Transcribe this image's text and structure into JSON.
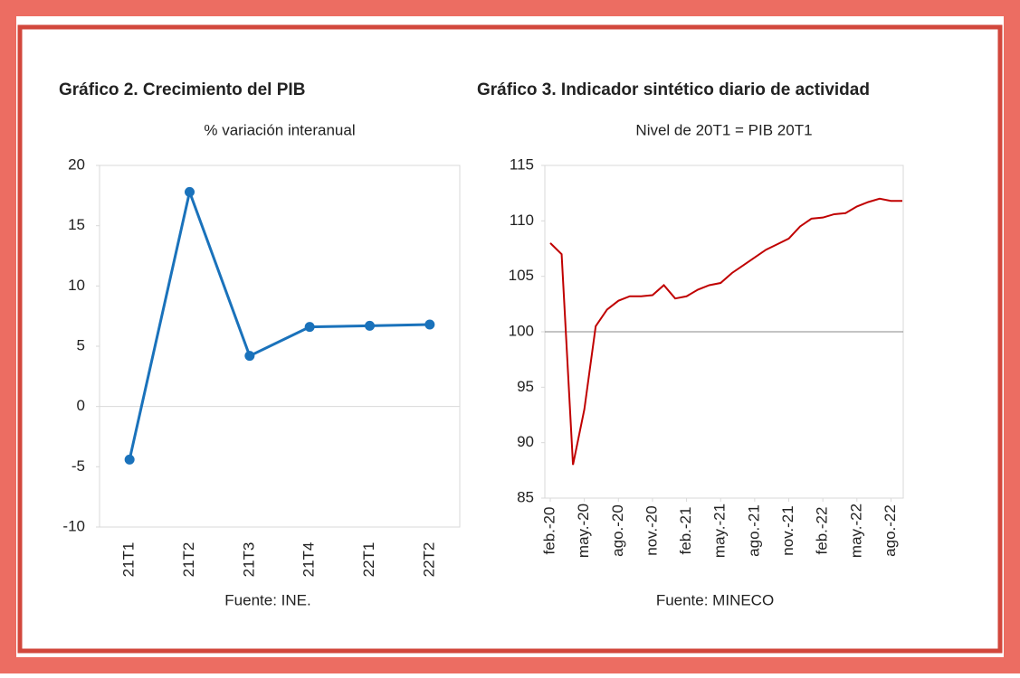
{
  "chart_data": [
    {
      "type": "line",
      "title": "Gráfico 2. Crecimiento del PIB",
      "subtitle": "% variación interanual",
      "categories": [
        "21T1",
        "21T2",
        "21T3",
        "21T4",
        "22T1",
        "22T2"
      ],
      "values": [
        -4.4,
        17.8,
        4.2,
        6.6,
        6.7,
        6.8
      ],
      "color": "#1a72bb",
      "markers": true,
      "ylim": [
        -10,
        20
      ],
      "yticks": [
        -10,
        -5,
        0,
        5,
        10,
        15,
        20
      ],
      "reference_line": 0,
      "source": "Fuente: INE."
    },
    {
      "type": "line",
      "title": "Gráfico 3. Indicador sintético diario de actividad",
      "subtitle": "Nivel de 20T1 = PIB 20T1",
      "x": [
        "2020-02",
        "2020-03",
        "2020-04",
        "2020-05",
        "2020-06",
        "2020-07",
        "2020-08",
        "2020-09",
        "2020-10",
        "2020-11",
        "2020-12",
        "2021-01",
        "2021-02",
        "2021-03",
        "2021-04",
        "2021-05",
        "2021-06",
        "2021-07",
        "2021-08",
        "2021-09",
        "2021-10",
        "2021-11",
        "2021-12",
        "2022-01",
        "2022-02",
        "2022-03",
        "2022-04",
        "2022-05",
        "2022-06",
        "2022-07",
        "2022-08",
        "2022-09"
      ],
      "values": [
        108,
        107,
        88,
        93,
        100.5,
        102,
        102.8,
        103.2,
        103.2,
        103.3,
        104.2,
        103,
        103.2,
        103.8,
        104.2,
        104.4,
        105.3,
        106,
        106.7,
        107.4,
        107.9,
        108.4,
        109.5,
        110.2,
        110.3,
        110.6,
        110.7,
        111.3,
        111.7,
        112,
        111.8,
        111.8
      ],
      "color": "#c00000",
      "markers": false,
      "xlim": [
        "2020-02",
        "2022-09"
      ],
      "xticks": [
        {
          "value": "2020-02",
          "label": "feb.-20"
        },
        {
          "value": "2020-05",
          "label": "may.-20"
        },
        {
          "value": "2020-08",
          "label": "ago.-20"
        },
        {
          "value": "2020-11",
          "label": "nov.-20"
        },
        {
          "value": "2021-02",
          "label": "feb.-21"
        },
        {
          "value": "2021-05",
          "label": "may.-21"
        },
        {
          "value": "2021-08",
          "label": "ago.-21"
        },
        {
          "value": "2021-11",
          "label": "nov.-21"
        },
        {
          "value": "2022-02",
          "label": "feb.-22"
        },
        {
          "value": "2022-05",
          "label": "may.-22"
        },
        {
          "value": "2022-08",
          "label": "ago.-22"
        }
      ],
      "ylim": [
        85,
        115
      ],
      "yticks": [
        85,
        90,
        95,
        100,
        105,
        110,
        115
      ],
      "reference_line": 100,
      "source": "Fuente: MINECO"
    }
  ]
}
